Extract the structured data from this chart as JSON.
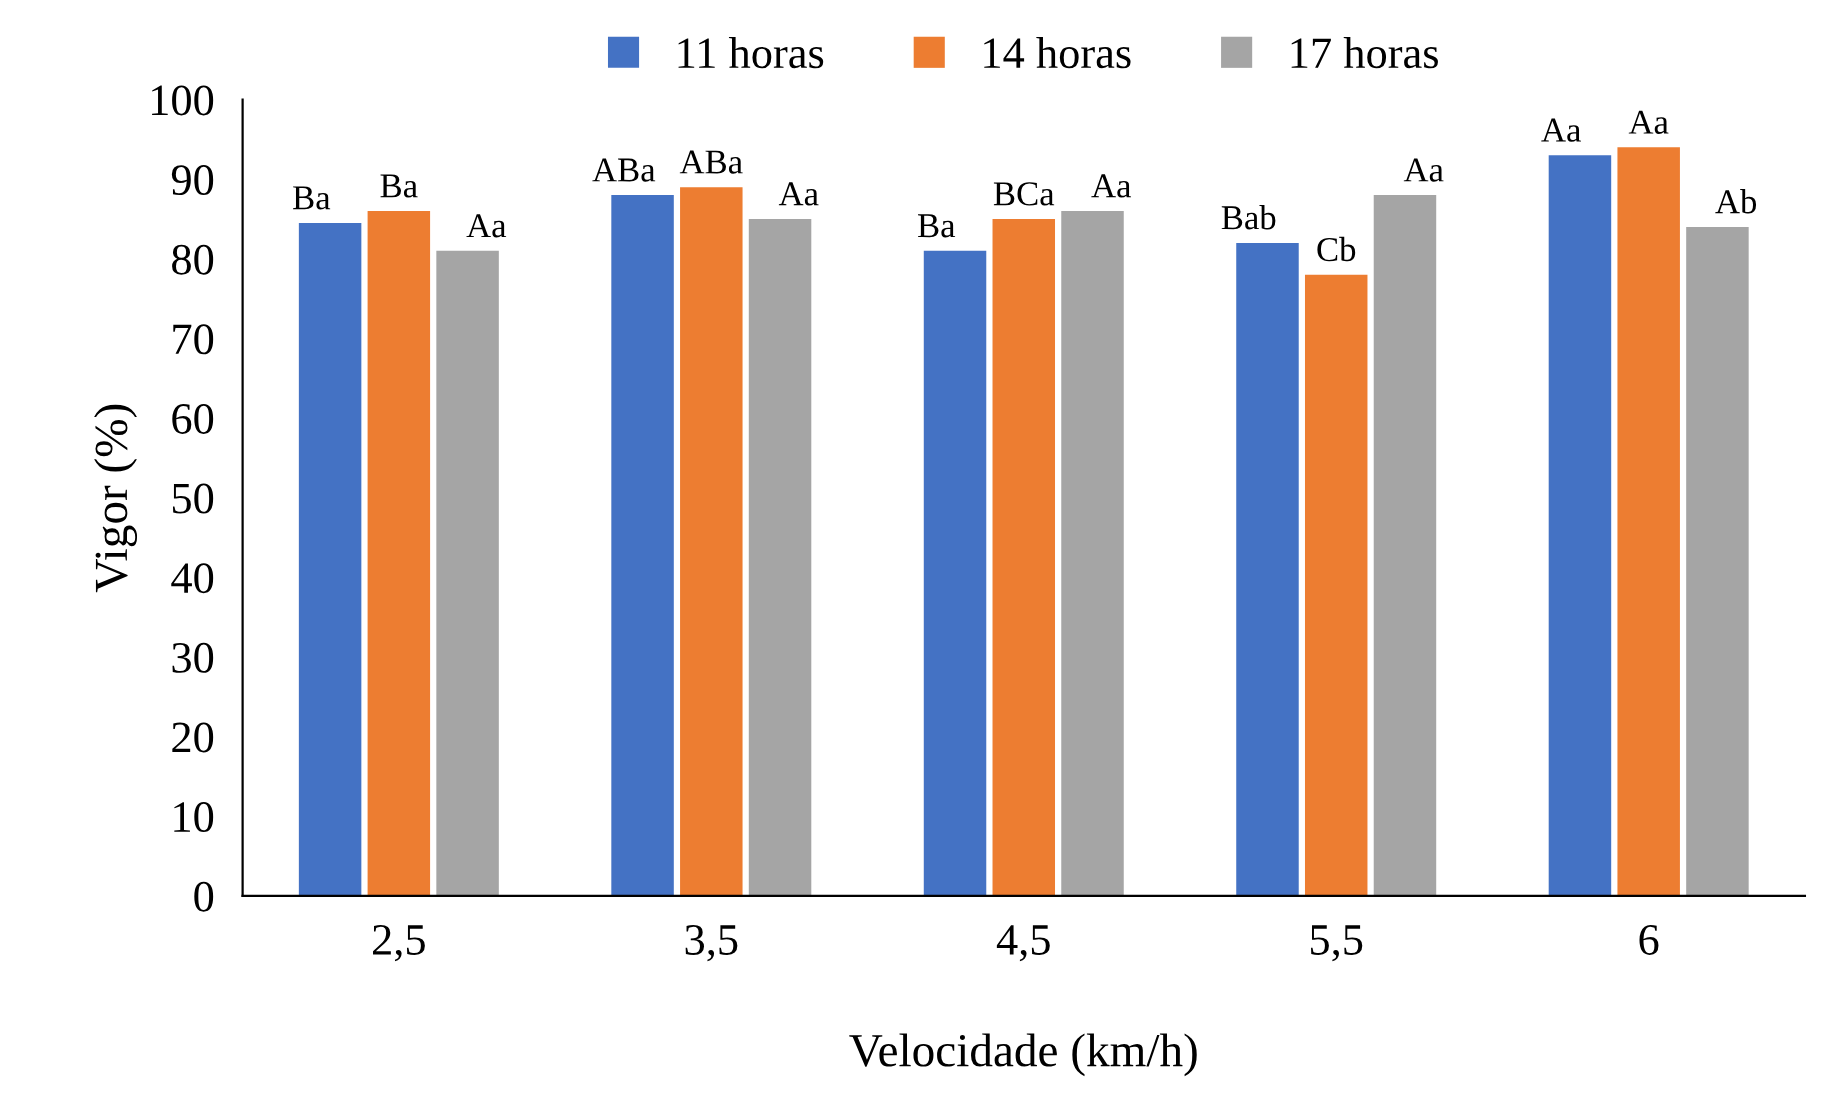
{
  "chart_data": {
    "type": "bar",
    "xlabel": "Velocidade (km/h)",
    "ylabel": "Vigor (%)",
    "categories": [
      "2,5",
      "3,5",
      "4,5",
      "5,5",
      "6"
    ],
    "series": [
      {
        "name": "11 horas",
        "color": "#4472c4",
        "values": [
          84.5,
          88,
          81,
          82,
          93
        ],
        "value_labels": [
          "Ba",
          "ABa",
          "Ba",
          "Bab",
          "Aa"
        ]
      },
      {
        "name": "14 horas",
        "color": "#ed7d31",
        "values": [
          86,
          89,
          85,
          78,
          94
        ],
        "value_labels": [
          "Ba",
          "ABa",
          "BCa",
          "Cb",
          "Aa"
        ]
      },
      {
        "name": "17 horas",
        "color": "#a5a5a5",
        "values": [
          81,
          85,
          86,
          88,
          84
        ],
        "value_labels": [
          "Aa",
          "Aa",
          "Aa",
          "Aa",
          "Ab"
        ]
      }
    ],
    "ylim": [
      0,
      100
    ],
    "yticks": [
      0,
      10,
      20,
      30,
      40,
      50,
      60,
      70,
      80,
      90,
      100
    ],
    "grid": false,
    "legend": "top"
  }
}
